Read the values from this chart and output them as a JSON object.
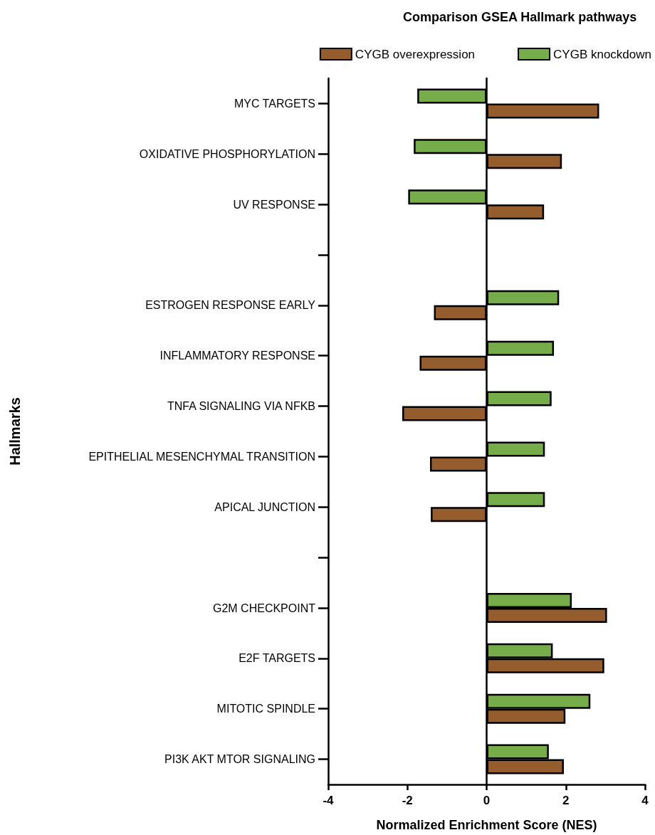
{
  "chart_data": {
    "type": "bar",
    "orientation": "horizontal",
    "title": "Comparison GSEA Hallmark pathways",
    "xlabel": "Normalized Enrichment Score (NES)",
    "ylabel": "Hallmarks",
    "categories": [
      "MYC TARGETS",
      "OXIDATIVE PHOSPHORYLATION",
      "UV RESPONSE",
      null,
      "ESTROGEN RESPONSE EARLY",
      "INFLAMMATORY RESPONSE",
      "TNFA SIGNALING VIA NFKB",
      "EPITHELIAL MESENCHYMAL TRANSITION",
      "APICAL JUNCTION",
      null,
      "G2M CHECKPOINT",
      "E2F TARGETS",
      "MITOTIC SPINDLE",
      "PI3K AKT MTOR SIGNALING"
    ],
    "series": [
      {
        "name": "CYGB overexpression",
        "color": "#955d2e",
        "values": [
          2.84,
          1.9,
          1.45,
          null,
          -1.33,
          -1.69,
          -2.13,
          -1.43,
          -1.41,
          null,
          3.04,
          2.97,
          1.99,
          1.95
        ]
      },
      {
        "name": "CYGB knockdown",
        "color": "#76ac4a",
        "values": [
          -1.75,
          -1.84,
          -1.98,
          null,
          1.83,
          1.7,
          1.64,
          1.47,
          1.47,
          null,
          2.15,
          1.67,
          2.62,
          1.57
        ]
      }
    ],
    "xlim": [
      -4,
      4
    ],
    "xticks": [
      -4,
      -2,
      0,
      2,
      4
    ],
    "legend": "top right"
  }
}
